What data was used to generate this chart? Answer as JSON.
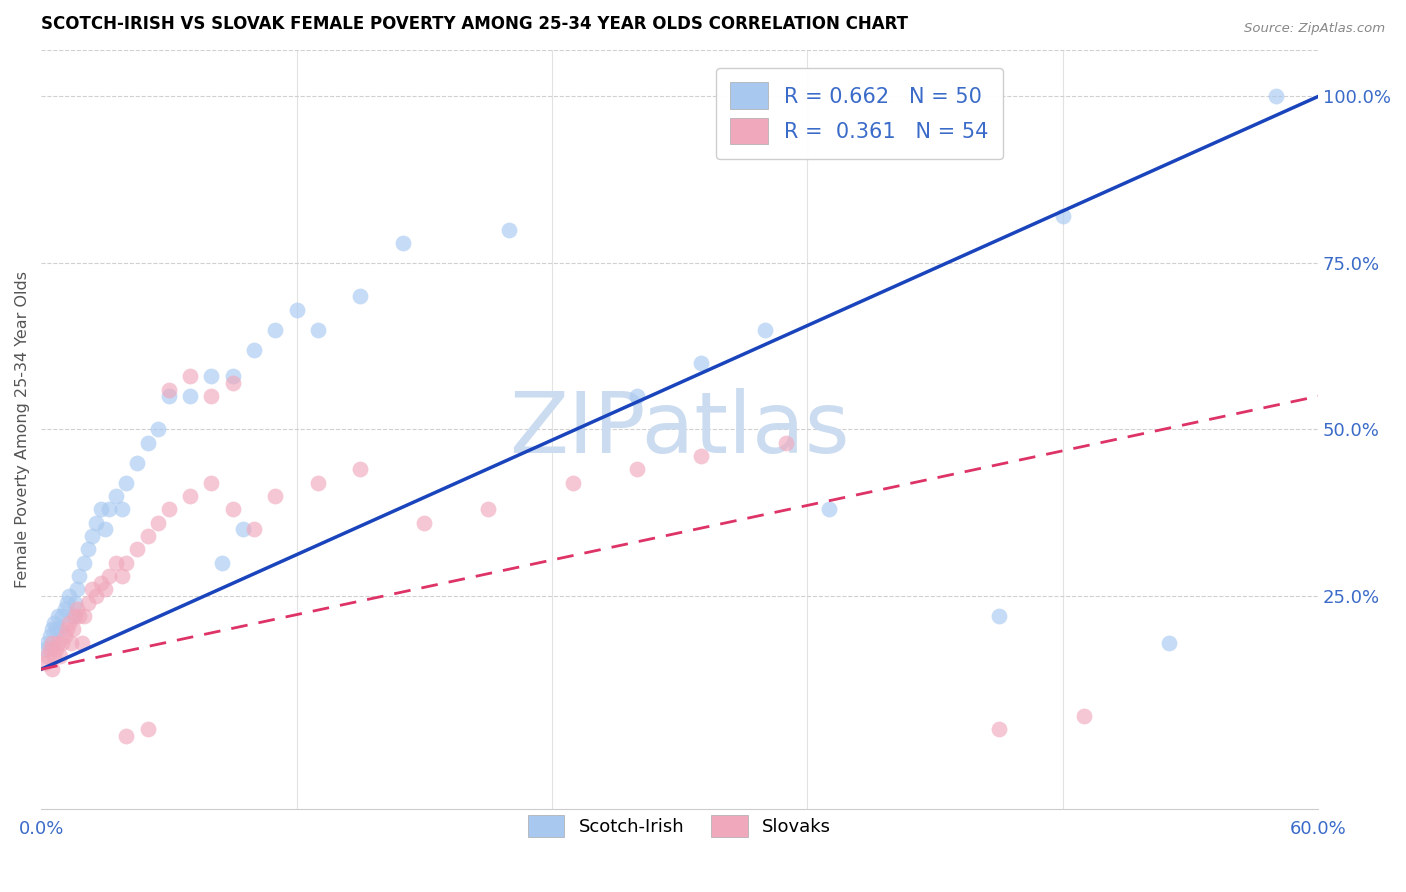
{
  "title": "SCOTCH-IRISH VS SLOVAK FEMALE POVERTY AMONG 25-34 YEAR OLDS CORRELATION CHART",
  "source": "Source: ZipAtlas.com",
  "ylabel": "Female Poverty Among 25-34 Year Olds",
  "xlim": [
    0.0,
    0.6
  ],
  "ylim": [
    -0.07,
    1.07
  ],
  "blue_R": 0.662,
  "blue_N": 50,
  "pink_R": 0.361,
  "pink_N": 54,
  "blue_color": "#a8c8f0",
  "pink_color": "#f0a8bc",
  "blue_line_color": "#1a44bb",
  "pink_line_color": "#dd3366",
  "watermark": "ZIPatlas",
  "watermark_color": "#ccdcf0",
  "blue_line_x0": 0.0,
  "blue_line_y0": 0.14,
  "blue_line_x1": 0.6,
  "blue_line_y1": 1.0,
  "pink_line_x0": 0.0,
  "pink_line_y0": 0.14,
  "pink_line_x1": 0.6,
  "pink_line_y1": 0.55,
  "scotch_irish_x": [
    0.002,
    0.003,
    0.004,
    0.005,
    0.006,
    0.007,
    0.008,
    0.009,
    0.01,
    0.011,
    0.012,
    0.013,
    0.015,
    0.016,
    0.017,
    0.018,
    0.02,
    0.022,
    0.024,
    0.026,
    0.028,
    0.03,
    0.032,
    0.035,
    0.038,
    0.04,
    0.045,
    0.05,
    0.055,
    0.06,
    0.07,
    0.08,
    0.09,
    0.1,
    0.11,
    0.12,
    0.13,
    0.15,
    0.17,
    0.22,
    0.085,
    0.095,
    0.28,
    0.31,
    0.34,
    0.37,
    0.45,
    0.48,
    0.53,
    0.58
  ],
  "scotch_irish_y": [
    0.17,
    0.18,
    0.19,
    0.2,
    0.21,
    0.2,
    0.22,
    0.2,
    0.22,
    0.23,
    0.24,
    0.25,
    0.22,
    0.24,
    0.26,
    0.28,
    0.3,
    0.32,
    0.34,
    0.36,
    0.38,
    0.35,
    0.38,
    0.4,
    0.38,
    0.42,
    0.45,
    0.48,
    0.5,
    0.55,
    0.55,
    0.58,
    0.58,
    0.62,
    0.65,
    0.68,
    0.65,
    0.7,
    0.78,
    0.8,
    0.3,
    0.35,
    0.55,
    0.6,
    0.65,
    0.38,
    0.22,
    0.82,
    0.18,
    1.0
  ],
  "slovak_x": [
    0.002,
    0.003,
    0.004,
    0.005,
    0.005,
    0.006,
    0.007,
    0.008,
    0.009,
    0.01,
    0.011,
    0.012,
    0.013,
    0.014,
    0.015,
    0.016,
    0.017,
    0.018,
    0.019,
    0.02,
    0.022,
    0.024,
    0.026,
    0.028,
    0.03,
    0.032,
    0.035,
    0.038,
    0.04,
    0.045,
    0.05,
    0.055,
    0.06,
    0.07,
    0.08,
    0.09,
    0.1,
    0.11,
    0.13,
    0.15,
    0.06,
    0.07,
    0.08,
    0.09,
    0.18,
    0.21,
    0.25,
    0.28,
    0.31,
    0.35,
    0.04,
    0.05,
    0.45,
    0.49
  ],
  "slovak_y": [
    0.15,
    0.16,
    0.17,
    0.18,
    0.14,
    0.16,
    0.17,
    0.18,
    0.16,
    0.18,
    0.19,
    0.2,
    0.21,
    0.18,
    0.2,
    0.22,
    0.23,
    0.22,
    0.18,
    0.22,
    0.24,
    0.26,
    0.25,
    0.27,
    0.26,
    0.28,
    0.3,
    0.28,
    0.3,
    0.32,
    0.34,
    0.36,
    0.38,
    0.4,
    0.42,
    0.38,
    0.35,
    0.4,
    0.42,
    0.44,
    0.56,
    0.58,
    0.55,
    0.57,
    0.36,
    0.38,
    0.42,
    0.44,
    0.46,
    0.48,
    0.04,
    0.05,
    0.05,
    0.07
  ]
}
